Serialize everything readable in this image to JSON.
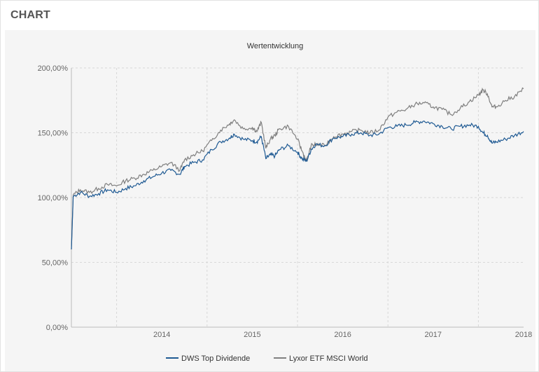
{
  "header": {
    "title": "CHART"
  },
  "chart_data": {
    "type": "line",
    "title": "Wertentwicklung",
    "xlabel": "",
    "ylabel": "",
    "x_ticks": [
      "2014",
      "2015",
      "2016",
      "2017",
      "2018"
    ],
    "y_ticks": [
      "0,00%",
      "50,00%",
      "100,00%",
      "150,00%",
      "200,00%"
    ],
    "ylim": [
      0,
      200
    ],
    "xlim": [
      2013.5,
      2018.5
    ],
    "grid": true,
    "legend": "bottom",
    "series": [
      {
        "name": "DWS Top Dividende",
        "color": "#1f5a93",
        "x": [
          2013.5,
          2013.52,
          2013.6,
          2013.7,
          2013.8,
          2013.9,
          2014.0,
          2014.1,
          2014.2,
          2014.3,
          2014.4,
          2014.5,
          2014.6,
          2014.7,
          2014.75,
          2014.85,
          2014.95,
          2015.05,
          2015.15,
          2015.25,
          2015.3,
          2015.4,
          2015.5,
          2015.55,
          2015.6,
          2015.65,
          2015.7,
          2015.75,
          2015.8,
          2015.9,
          2016.0,
          2016.05,
          2016.1,
          2016.15,
          2016.2,
          2016.3,
          2016.4,
          2016.5,
          2016.6,
          2016.7,
          2016.8,
          2016.9,
          2017.0,
          2017.1,
          2017.2,
          2017.3,
          2017.4,
          2017.5,
          2017.6,
          2017.7,
          2017.8,
          2017.9,
          2018.0,
          2018.05,
          2018.1,
          2018.15,
          2018.2,
          2018.3,
          2018.4,
          2018.5
        ],
        "values": [
          60,
          101,
          104,
          101,
          103,
          106,
          104,
          107,
          109,
          113,
          116,
          119,
          121,
          118,
          124,
          127,
          129,
          137,
          143,
          146,
          149,
          145,
          144,
          143,
          147,
          130,
          133,
          132,
          137,
          140,
          135,
          130,
          128,
          137,
          141,
          140,
          146,
          147,
          149,
          150,
          148,
          149,
          154,
          155,
          156,
          158,
          159,
          157,
          155,
          153,
          155,
          156,
          155,
          150,
          148,
          142,
          143,
          145,
          148,
          151
        ]
      },
      {
        "name": "Lyxor ETF MSCI World",
        "color": "#7f7f7f",
        "x": [
          2013.5,
          2013.52,
          2013.6,
          2013.7,
          2013.8,
          2013.9,
          2014.0,
          2014.1,
          2014.2,
          2014.3,
          2014.4,
          2014.5,
          2014.6,
          2014.7,
          2014.75,
          2014.85,
          2014.95,
          2015.05,
          2015.15,
          2015.25,
          2015.3,
          2015.4,
          2015.5,
          2015.55,
          2015.6,
          2015.65,
          2015.7,
          2015.75,
          2015.8,
          2015.9,
          2016.0,
          2016.05,
          2016.1,
          2016.15,
          2016.2,
          2016.3,
          2016.4,
          2016.5,
          2016.6,
          2016.7,
          2016.8,
          2016.9,
          2017.0,
          2017.1,
          2017.2,
          2017.3,
          2017.4,
          2017.5,
          2017.6,
          2017.7,
          2017.8,
          2017.9,
          2018.0,
          2018.05,
          2018.1,
          2018.15,
          2018.2,
          2018.3,
          2018.4,
          2018.5
        ],
        "values": [
          60,
          102,
          106,
          104,
          107,
          110,
          109,
          113,
          115,
          118,
          121,
          124,
          127,
          121,
          129,
          133,
          136,
          144,
          152,
          157,
          160,
          153,
          154,
          151,
          158,
          138,
          145,
          148,
          153,
          155,
          145,
          136,
          128,
          140,
          141,
          140,
          147,
          149,
          151,
          152,
          150,
          152,
          162,
          166,
          168,
          172,
          173,
          170,
          168,
          164,
          169,
          174,
          179,
          183,
          180,
          170,
          170,
          175,
          178,
          184
        ]
      }
    ]
  }
}
